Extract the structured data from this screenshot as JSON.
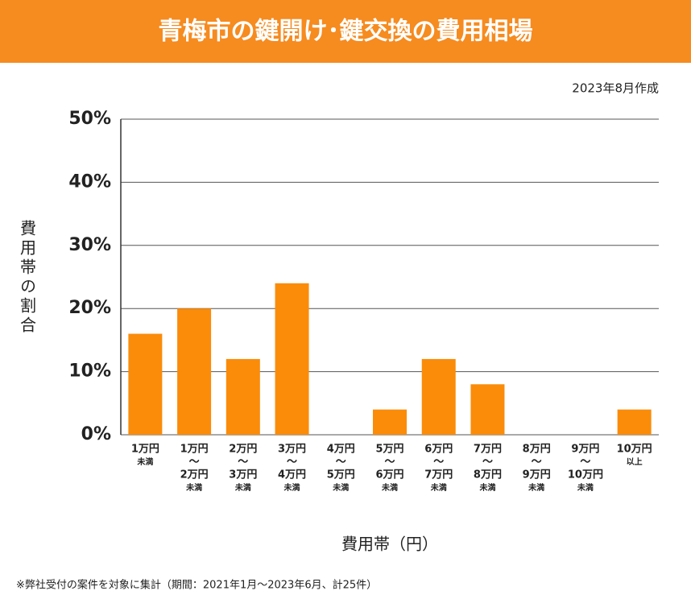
{
  "chart_data": {
    "type": "bar",
    "title": "青梅市の鍵開け･鍵交換の費用相場",
    "subtitle": "2023年8月作成",
    "y_label": "費用帯の割合",
    "x_label": "費用帯（円）",
    "footnote": "※弊社受付の案件を対象に集計（期間：2021年1月～2023年6月、計25件）",
    "categories": [
      [
        "1万円",
        "未満"
      ],
      [
        "1万円",
        "～",
        "2万円",
        "未満"
      ],
      [
        "2万円",
        "～",
        "3万円",
        "未満"
      ],
      [
        "3万円",
        "～",
        "4万円",
        "未満"
      ],
      [
        "4万円",
        "～",
        "5万円",
        "未満"
      ],
      [
        "5万円",
        "～",
        "6万円",
        "未満"
      ],
      [
        "6万円",
        "～",
        "7万円",
        "未満"
      ],
      [
        "7万円",
        "～",
        "8万円",
        "未満"
      ],
      [
        "8万円",
        "～",
        "9万円",
        "未満"
      ],
      [
        "9万円",
        "～",
        "10万円",
        "未満"
      ],
      [
        "10万円",
        "以上"
      ]
    ],
    "values": [
      16,
      20,
      12,
      24,
      0,
      4,
      12,
      8,
      0,
      0,
      4
    ],
    "color": "#fa8c0a",
    "ylim": [
      0,
      50
    ],
    "yticks": [
      {
        "value": 0,
        "label": "0%"
      },
      {
        "value": 10,
        "label": "10%"
      },
      {
        "value": 20,
        "label": "20%"
      },
      {
        "value": 30,
        "label": "30%"
      },
      {
        "value": 40,
        "label": "40%"
      },
      {
        "value": 50,
        "label": "50%"
      }
    ],
    "grid": true
  }
}
